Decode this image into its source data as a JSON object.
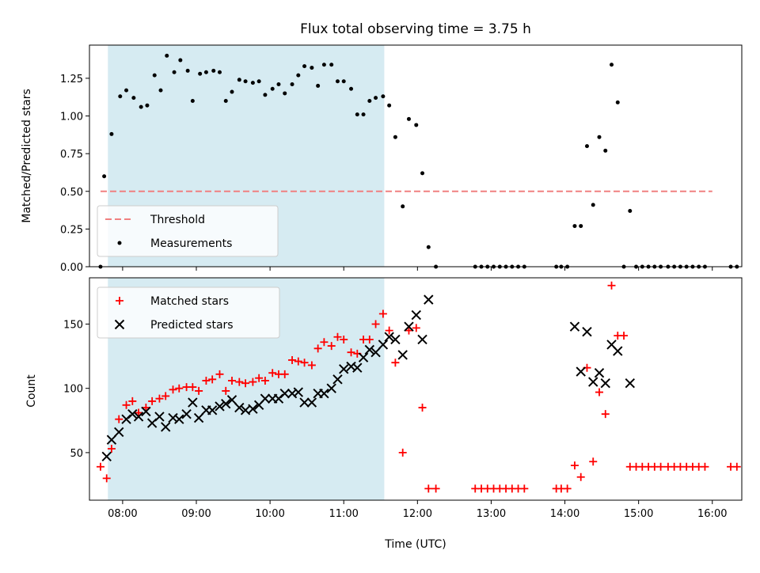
{
  "chart_data": [
    {
      "type": "scatter",
      "title": "Flux total observing time = 3.75 h",
      "ylabel": "Matched/Predicted stars",
      "xlim": [
        "07:33",
        "16:24"
      ],
      "ylim": [
        0,
        1.47
      ],
      "yticks": [
        0.0,
        0.25,
        0.5,
        0.75,
        1.0,
        1.25
      ],
      "shaded_interval": [
        "07:48",
        "11:33"
      ],
      "shade_color": "#add8e6",
      "threshold": {
        "name": "Threshold",
        "value": 0.5,
        "x_range": [
          "07:42",
          "16:00"
        ],
        "color": "#f08080",
        "style": "dashed"
      },
      "legend_position": "lower-left",
      "series": [
        {
          "name": "Measurements",
          "color": "#000000",
          "marker": "dot",
          "points": [
            [
              "07:42",
              0.0
            ],
            [
              "07:45",
              0.6
            ],
            [
              "07:51",
              0.88
            ],
            [
              "07:58",
              1.13
            ],
            [
              "08:03",
              1.17
            ],
            [
              "08:09",
              1.12
            ],
            [
              "08:15",
              1.06
            ],
            [
              "08:20",
              1.07
            ],
            [
              "08:26",
              1.27
            ],
            [
              "08:31",
              1.17
            ],
            [
              "08:36",
              1.4
            ],
            [
              "08:42",
              1.29
            ],
            [
              "08:47",
              1.37
            ],
            [
              "08:53",
              1.3
            ],
            [
              "08:57",
              1.1
            ],
            [
              "09:03",
              1.28
            ],
            [
              "09:08",
              1.29
            ],
            [
              "09:14",
              1.3
            ],
            [
              "09:19",
              1.29
            ],
            [
              "09:24",
              1.1
            ],
            [
              "09:29",
              1.16
            ],
            [
              "09:35",
              1.24
            ],
            [
              "09:40",
              1.23
            ],
            [
              "09:46",
              1.22
            ],
            [
              "09:51",
              1.23
            ],
            [
              "09:56",
              1.14
            ],
            [
              "10:02",
              1.18
            ],
            [
              "10:07",
              1.21
            ],
            [
              "10:12",
              1.15
            ],
            [
              "10:18",
              1.21
            ],
            [
              "10:23",
              1.27
            ],
            [
              "10:28",
              1.33
            ],
            [
              "10:34",
              1.32
            ],
            [
              "10:39",
              1.2
            ],
            [
              "10:44",
              1.34
            ],
            [
              "10:50",
              1.34
            ],
            [
              "10:55",
              1.23
            ],
            [
              "11:00",
              1.23
            ],
            [
              "11:06",
              1.18
            ],
            [
              "11:11",
              1.01
            ],
            [
              "11:16",
              1.01
            ],
            [
              "11:21",
              1.1
            ],
            [
              "11:26",
              1.12
            ],
            [
              "11:32",
              1.13
            ],
            [
              "11:37",
              1.07
            ],
            [
              "11:42",
              0.86
            ],
            [
              "11:48",
              0.4
            ],
            [
              "11:53",
              0.98
            ],
            [
              "11:59",
              0.94
            ],
            [
              "12:04",
              0.62
            ],
            [
              "12:09",
              0.13
            ],
            [
              "12:15",
              0.0
            ],
            [
              "12:47",
              0.0
            ],
            [
              "12:52",
              0.0
            ],
            [
              "12:57",
              0.0
            ],
            [
              "13:02",
              0.0
            ],
            [
              "13:07",
              0.0
            ],
            [
              "13:12",
              0.0
            ],
            [
              "13:17",
              0.0
            ],
            [
              "13:22",
              0.0
            ],
            [
              "13:27",
              0.0
            ],
            [
              "13:53",
              0.0
            ],
            [
              "13:57",
              0.0
            ],
            [
              "14:02",
              0.0
            ],
            [
              "14:08",
              0.27
            ],
            [
              "14:13",
              0.27
            ],
            [
              "14:18",
              0.8
            ],
            [
              "14:23",
              0.41
            ],
            [
              "14:28",
              0.86
            ],
            [
              "14:33",
              0.77
            ],
            [
              "14:38",
              1.34
            ],
            [
              "14:43",
              1.09
            ],
            [
              "14:48",
              0.0
            ],
            [
              "14:53",
              0.37
            ],
            [
              "14:58",
              0.0
            ],
            [
              "15:03",
              0.0
            ],
            [
              "15:08",
              0.0
            ],
            [
              "15:13",
              0.0
            ],
            [
              "15:18",
              0.0
            ],
            [
              "15:24",
              0.0
            ],
            [
              "15:29",
              0.0
            ],
            [
              "15:34",
              0.0
            ],
            [
              "15:39",
              0.0
            ],
            [
              "15:44",
              0.0
            ],
            [
              "15:49",
              0.0
            ],
            [
              "15:54",
              0.0
            ],
            [
              "16:15",
              0.0
            ],
            [
              "16:20",
              0.0
            ]
          ]
        }
      ]
    },
    {
      "type": "scatter",
      "xlabel": "Time (UTC)",
      "ylabel": "Count",
      "xlim": [
        "07:33",
        "16:24"
      ],
      "ylim": [
        13,
        186
      ],
      "yticks": [
        50,
        100,
        150
      ],
      "xticks": [
        "08:00",
        "09:00",
        "10:00",
        "11:00",
        "12:00",
        "13:00",
        "14:00",
        "15:00",
        "16:00"
      ],
      "shaded_interval": [
        "07:48",
        "11:33"
      ],
      "shade_color": "#add8e6",
      "legend_position": "upper-left",
      "series": [
        {
          "name": "Matched stars",
          "color": "#ff0000",
          "marker": "plus",
          "points": [
            [
              "07:42",
              39
            ],
            [
              "07:47",
              30
            ],
            [
              "07:51",
              53
            ],
            [
              "07:57",
              76
            ],
            [
              "08:03",
              87
            ],
            [
              "08:08",
              90
            ],
            [
              "08:13",
              81
            ],
            [
              "08:19",
              85
            ],
            [
              "08:24",
              90
            ],
            [
              "08:30",
              92
            ],
            [
              "08:35",
              94
            ],
            [
              "08:41",
              99
            ],
            [
              "08:46",
              100
            ],
            [
              "08:52",
              101
            ],
            [
              "08:57",
              101
            ],
            [
              "09:02",
              98
            ],
            [
              "09:08",
              106
            ],
            [
              "09:13",
              107
            ],
            [
              "09:19",
              111
            ],
            [
              "09:24",
              98
            ],
            [
              "09:29",
              106
            ],
            [
              "09:35",
              105
            ],
            [
              "09:40",
              104
            ],
            [
              "09:46",
              105
            ],
            [
              "09:51",
              108
            ],
            [
              "09:56",
              106
            ],
            [
              "10:02",
              112
            ],
            [
              "10:07",
              111
            ],
            [
              "10:12",
              111
            ],
            [
              "10:18",
              122
            ],
            [
              "10:23",
              121
            ],
            [
              "10:28",
              120
            ],
            [
              "10:34",
              118
            ],
            [
              "10:39",
              131
            ],
            [
              "10:44",
              136
            ],
            [
              "10:50",
              133
            ],
            [
              "10:55",
              140
            ],
            [
              "11:00",
              138
            ],
            [
              "11:06",
              128
            ],
            [
              "11:11",
              127
            ],
            [
              "11:16",
              138
            ],
            [
              "11:21",
              138
            ],
            [
              "11:26",
              150
            ],
            [
              "11:32",
              158
            ],
            [
              "11:37",
              145
            ],
            [
              "11:42",
              120
            ],
            [
              "11:48",
              50
            ],
            [
              "11:53",
              145
            ],
            [
              "11:59",
              147
            ],
            [
              "12:04",
              85
            ],
            [
              "12:09",
              22
            ],
            [
              "12:15",
              22
            ],
            [
              "12:47",
              22
            ],
            [
              "12:52",
              22
            ],
            [
              "12:57",
              22
            ],
            [
              "13:02",
              22
            ],
            [
              "13:07",
              22
            ],
            [
              "13:12",
              22
            ],
            [
              "13:17",
              22
            ],
            [
              "13:22",
              22
            ],
            [
              "13:27",
              22
            ],
            [
              "13:53",
              22
            ],
            [
              "13:57",
              22
            ],
            [
              "14:02",
              22
            ],
            [
              "14:08",
              40
            ],
            [
              "14:13",
              31
            ],
            [
              "14:18",
              116
            ],
            [
              "14:23",
              43
            ],
            [
              "14:28",
              97
            ],
            [
              "14:33",
              80
            ],
            [
              "14:38",
              180
            ],
            [
              "14:43",
              141
            ],
            [
              "14:48",
              141
            ],
            [
              "14:53",
              39
            ],
            [
              "14:58",
              39
            ],
            [
              "15:03",
              39
            ],
            [
              "15:08",
              39
            ],
            [
              "15:13",
              39
            ],
            [
              "15:18",
              39
            ],
            [
              "15:24",
              39
            ],
            [
              "15:29",
              39
            ],
            [
              "15:34",
              39
            ],
            [
              "15:39",
              39
            ],
            [
              "15:44",
              39
            ],
            [
              "15:49",
              39
            ],
            [
              "15:54",
              39
            ],
            [
              "16:15",
              39
            ],
            [
              "16:20",
              39
            ]
          ]
        },
        {
          "name": "Predicted stars",
          "color": "#000000",
          "marker": "x",
          "points": [
            [
              "07:47",
              47
            ],
            [
              "07:51",
              60
            ],
            [
              "07:57",
              66
            ],
            [
              "08:03",
              76
            ],
            [
              "08:08",
              80
            ],
            [
              "08:13",
              78
            ],
            [
              "08:19",
              82
            ],
            [
              "08:24",
              73
            ],
            [
              "08:30",
              78
            ],
            [
              "08:35",
              70
            ],
            [
              "08:41",
              77
            ],
            [
              "08:46",
              76
            ],
            [
              "08:52",
              80
            ],
            [
              "08:57",
              89
            ],
            [
              "09:02",
              77
            ],
            [
              "09:08",
              83
            ],
            [
              "09:13",
              83
            ],
            [
              "09:19",
              86
            ],
            [
              "09:24",
              88
            ],
            [
              "09:29",
              91
            ],
            [
              "09:35",
              85
            ],
            [
              "09:40",
              83
            ],
            [
              "09:46",
              84
            ],
            [
              "09:51",
              87
            ],
            [
              "09:56",
              92
            ],
            [
              "10:02",
              92
            ],
            [
              "10:07",
              92
            ],
            [
              "10:12",
              96
            ],
            [
              "10:18",
              96
            ],
            [
              "10:23",
              97
            ],
            [
              "10:28",
              89
            ],
            [
              "10:34",
              89
            ],
            [
              "10:39",
              96
            ],
            [
              "10:44",
              96
            ],
            [
              "10:50",
              100
            ],
            [
              "10:55",
              107
            ],
            [
              "11:00",
              115
            ],
            [
              "11:06",
              117
            ],
            [
              "11:11",
              116
            ],
            [
              "11:16",
              124
            ],
            [
              "11:21",
              130
            ],
            [
              "11:26",
              128
            ],
            [
              "11:32",
              134
            ],
            [
              "11:37",
              140
            ],
            [
              "11:42",
              138
            ],
            [
              "11:48",
              126
            ],
            [
              "11:53",
              148
            ],
            [
              "11:59",
              157
            ],
            [
              "12:04",
              138
            ],
            [
              "12:09",
              169
            ],
            [
              "14:08",
              148
            ],
            [
              "14:13",
              113
            ],
            [
              "14:18",
              144
            ],
            [
              "14:23",
              105
            ],
            [
              "14:28",
              112
            ],
            [
              "14:33",
              104
            ],
            [
              "14:38",
              134
            ],
            [
              "14:43",
              129
            ],
            [
              "14:53",
              104
            ]
          ]
        }
      ]
    }
  ]
}
